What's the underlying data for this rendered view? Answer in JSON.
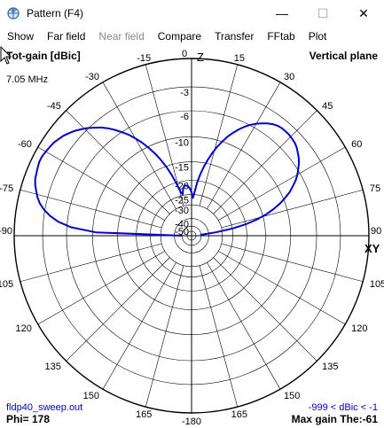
{
  "window": {
    "title": "Pattern   (F4)",
    "minimize_glyph": "—",
    "maximize_glyph": "☐",
    "close_glyph": "✕"
  },
  "menu": [
    "Show",
    "Far field",
    "Near field",
    "Compare",
    "Transfer",
    "FFtab",
    "Plot"
  ],
  "menu_disabled": [
    "Near field"
  ],
  "plot": {
    "top_left_label": "Tot-gain [dBic]",
    "top_right_label": "Vertical plane",
    "frequency": "7.05 MHz",
    "axis_z": "Z",
    "axis_xy": "XY",
    "bottom_left_file": "fldp40_sweep.out",
    "bottom_left_phi": "Phi= 178",
    "bottom_right_range": "-999 < dBic < -1",
    "bottom_right_maxgain": "Max gain The:-61",
    "angle_labels": [
      {
        "angle": 0,
        "text": "0"
      },
      {
        "angle": -15,
        "text": "-15"
      },
      {
        "angle": 15,
        "text": "15"
      },
      {
        "angle": -30,
        "text": "-30"
      },
      {
        "angle": 30,
        "text": "30"
      },
      {
        "angle": -45,
        "text": "-45"
      },
      {
        "angle": 45,
        "text": "45"
      },
      {
        "angle": -60,
        "text": "-60"
      },
      {
        "angle": 60,
        "text": "60"
      },
      {
        "angle": -75,
        "text": "-75"
      },
      {
        "angle": 75,
        "text": "75"
      },
      {
        "angle": -90,
        "text": "-90"
      },
      {
        "angle": 90,
        "text": "90"
      },
      {
        "angle": -105,
        "text": "105"
      },
      {
        "angle": 105,
        "text": "105"
      },
      {
        "angle": -120,
        "text": "120"
      },
      {
        "angle": 120,
        "text": "120"
      },
      {
        "angle": -135,
        "text": "135"
      },
      {
        "angle": 135,
        "text": "135"
      },
      {
        "angle": -150,
        "text": "150"
      },
      {
        "angle": 150,
        "text": "150"
      },
      {
        "angle": -165,
        "text": "165"
      },
      {
        "angle": 165,
        "text": "165"
      },
      {
        "angle": 180,
        "text": "-180"
      }
    ],
    "ring_labels": [
      "-3",
      "-6",
      "-10",
      "-15",
      "-20",
      "-25",
      "-30",
      "-40",
      "-50"
    ],
    "colors": {
      "grid": "#000000",
      "trace": "#0000cc",
      "info_blue": "#0000cc",
      "background": "#ffffff"
    }
  },
  "chart_data": {
    "type": "polar",
    "title": "Tot-gain [dBic]",
    "subtitle": "Vertical plane",
    "radial_unit": "dBic",
    "radial_ticks": [
      0,
      -3,
      -6,
      -10,
      -15,
      -20,
      -25,
      -30,
      -40,
      -50
    ],
    "angle_ticks_deg": [
      -180,
      -165,
      -150,
      -135,
      -120,
      -105,
      -90,
      -75,
      -60,
      -45,
      -30,
      -15,
      0,
      15,
      30,
      45,
      60,
      75,
      90,
      105,
      120,
      135,
      150,
      165
    ],
    "series": [
      {
        "angles_deg": [
          -90,
          -88,
          -86,
          -84,
          -82,
          -80,
          -78,
          -76,
          -74,
          -72,
          -70,
          -68,
          -66,
          -64,
          -62,
          -60,
          -58,
          -56,
          -54,
          -52,
          -50,
          -48,
          -46,
          -44,
          -42,
          -40,
          -38,
          -36,
          -34,
          -32,
          -30,
          -28,
          -26,
          -24,
          -22,
          -20,
          -18,
          -16,
          -14,
          -12,
          -10,
          -8,
          -6,
          -4,
          -2,
          0,
          2,
          4,
          6,
          8,
          10,
          12,
          14,
          16,
          18,
          20,
          22,
          24,
          26,
          28,
          30,
          32,
          34,
          36,
          38,
          40,
          42,
          44,
          46,
          48,
          50,
          52,
          54,
          56,
          58,
          60,
          62,
          64,
          66,
          68,
          70,
          72,
          74,
          76,
          78,
          80,
          82,
          84,
          86,
          88,
          90
        ],
        "gain_dbic": [
          -50,
          -10.6,
          -6.6,
          -4.8,
          -3.7,
          -2.9,
          -2.3,
          -1.9,
          -1.6,
          -1.3,
          -1.1,
          -1.0,
          -0.9,
          -0.8,
          -0.8,
          -0.9,
          -1.0,
          -1.1,
          -1.3,
          -1.5,
          -1.8,
          -2.1,
          -2.5,
          -2.9,
          -3.4,
          -3.9,
          -4.5,
          -5.2,
          -6.0,
          -6.8,
          -7.8,
          -8.9,
          -10.2,
          -11.6,
          -13.3,
          -15.3,
          -17.6,
          -20.5,
          -23.5,
          -24.6,
          -22.3,
          -21.5,
          -21.5,
          -21.9,
          -22.7,
          -24.1,
          -26.5,
          -24.0,
          -20.6,
          -18.1,
          -16.0,
          -14.2,
          -12.6,
          -11.2,
          -10.0,
          -8.9,
          -8.0,
          -7.2,
          -6.5,
          -5.9,
          -5.4,
          -5.0,
          -4.6,
          -4.3,
          -4.1,
          -4.0,
          -4.0,
          -4.0,
          -4.1,
          -4.2,
          -4.4,
          -4.7,
          -5.0,
          -5.4,
          -5.9,
          -6.4,
          -7.0,
          -7.8,
          -8.6,
          -9.7,
          -10.9,
          -12.4,
          -14.2,
          -16.6,
          -19.9,
          -24.8,
          -34.1,
          -50,
          -50,
          -50,
          -50
        ]
      }
    ],
    "grid": true
  }
}
